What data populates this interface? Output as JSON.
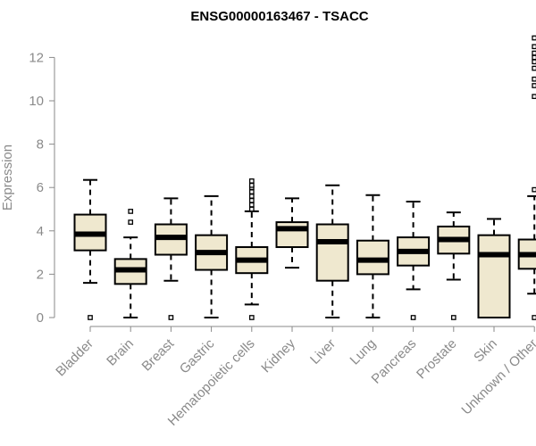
{
  "chart_data": {
    "type": "boxplot",
    "title": "ENSG00000163467 - TSACC",
    "xlabel": "",
    "ylabel": "Expression",
    "ylim": [
      0,
      12.8
    ],
    "yticks": [
      "0",
      "2",
      "4",
      "6",
      "8",
      "10",
      "12"
    ],
    "grid": false,
    "box_fill": "#efe8cf",
    "box_stroke": "#000000",
    "categories": [
      "Bladder",
      "Brain",
      "Breast",
      "Gastric",
      "Hematopoietic cells",
      "Kidney",
      "Liver",
      "Lung",
      "Pancreas",
      "Prostate",
      "Skin",
      "Unknown / Other"
    ],
    "boxes": [
      {
        "whisker_low": 1.6,
        "q1": 3.1,
        "median": 3.85,
        "q3": 4.75,
        "whisker_high": 6.35,
        "outliers": [
          0
        ]
      },
      {
        "whisker_low": 0.0,
        "q1": 1.55,
        "median": 2.2,
        "q3": 2.7,
        "whisker_high": 3.7,
        "outliers": [
          4.4,
          4.9
        ]
      },
      {
        "whisker_low": 1.7,
        "q1": 2.9,
        "median": 3.7,
        "q3": 4.3,
        "whisker_high": 5.5,
        "outliers": [
          0
        ]
      },
      {
        "whisker_low": 0.0,
        "q1": 2.2,
        "median": 3.0,
        "q3": 3.8,
        "whisker_high": 5.6,
        "outliers": []
      },
      {
        "whisker_low": 0.6,
        "q1": 2.05,
        "median": 2.65,
        "q3": 3.25,
        "whisker_high": 4.9,
        "outliers": [
          0,
          5.0,
          5.2,
          5.4,
          5.6,
          5.8,
          6.0,
          6.1,
          6.3
        ]
      },
      {
        "whisker_low": 2.3,
        "q1": 3.25,
        "median": 4.1,
        "q3": 4.4,
        "whisker_high": 5.5,
        "outliers": []
      },
      {
        "whisker_low": 0.0,
        "q1": 1.7,
        "median": 3.5,
        "q3": 4.3,
        "whisker_high": 6.1,
        "outliers": []
      },
      {
        "whisker_low": 0.0,
        "q1": 2.0,
        "median": 2.65,
        "q3": 3.55,
        "whisker_high": 5.65,
        "outliers": []
      },
      {
        "whisker_low": 1.3,
        "q1": 2.4,
        "median": 3.05,
        "q3": 3.7,
        "whisker_high": 5.35,
        "outliers": [
          0
        ]
      },
      {
        "whisker_low": 1.75,
        "q1": 2.95,
        "median": 3.6,
        "q3": 4.2,
        "whisker_high": 4.85,
        "outliers": [
          0
        ]
      },
      {
        "whisker_low": 0.0,
        "q1": 0.0,
        "median": 2.9,
        "q3": 3.8,
        "whisker_high": 4.55,
        "outliers": []
      },
      {
        "whisker_low": 1.1,
        "q1": 2.25,
        "median": 2.9,
        "q3": 3.6,
        "whisker_high": 5.6,
        "outliers": [
          0,
          5.9,
          10.2,
          10.7,
          11.0,
          11.5,
          11.8,
          12.0,
          12.2,
          12.5,
          12.9
        ]
      }
    ]
  }
}
